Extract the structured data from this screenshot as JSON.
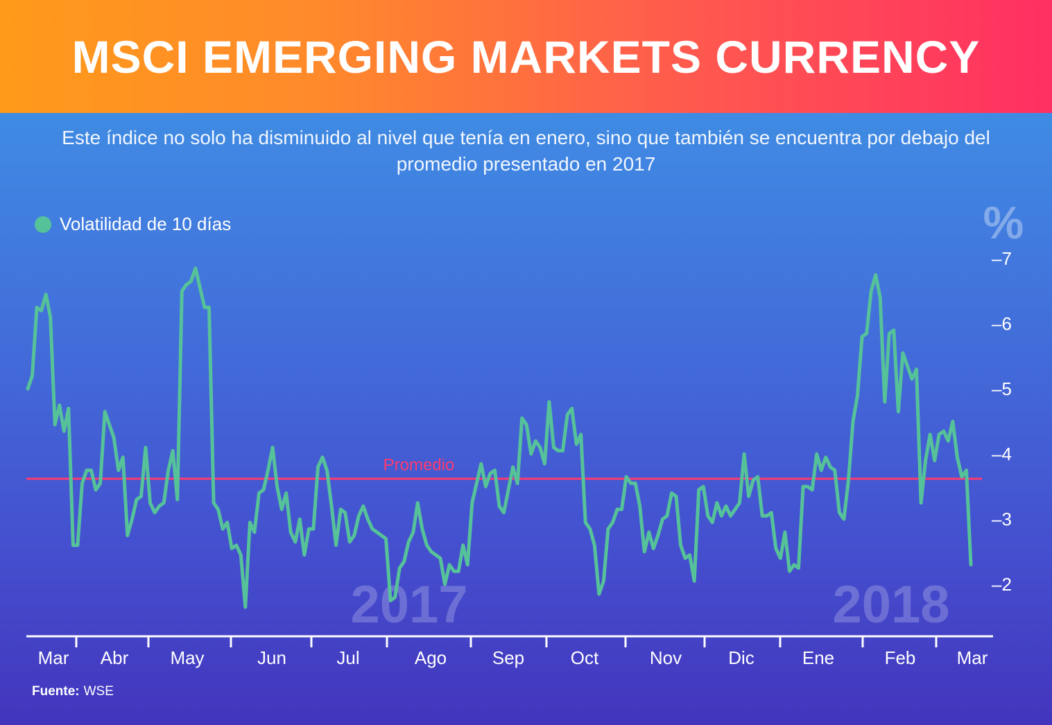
{
  "header": {
    "title": "MSCI EMERGING MARKETS CURRENCY"
  },
  "subtitle": "Este índice no solo ha disminuido al nivel que tenía en enero, sino que también se encuentra por debajo del promedio presentado en 2017",
  "legend": {
    "label": "Volatilidad de 10 días",
    "color": "#56c29a"
  },
  "source": {
    "label": "Fuente:",
    "value": "WSE"
  },
  "chart_data": {
    "type": "line",
    "title": "MSCI EMERGING MARKETS CURRENCY",
    "ylabel": "%",
    "ylim": [
      1.3,
      7.3
    ],
    "yticks": [
      2,
      3,
      4,
      5,
      6,
      7
    ],
    "ytick_labels": [
      "–2",
      "–3",
      "–4",
      "–5",
      "–6",
      "–7"
    ],
    "months": [
      "Mar",
      "Abr",
      "May",
      "Jun",
      "Jul",
      "Ago",
      "Sep",
      "Oct",
      "Nov",
      "Dic",
      "Ene",
      "Feb",
      "Mar"
    ],
    "year_labels": [
      "2017",
      "2018"
    ],
    "average": {
      "label": "Promedio",
      "value": 3.62,
      "color": "#ff3a6e"
    },
    "series": [
      {
        "name": "Volatilidad de 10 días",
        "color": "#56c29a",
        "values": [
          5.0,
          5.2,
          6.25,
          6.2,
          6.45,
          6.1,
          4.45,
          4.75,
          4.35,
          4.7,
          2.6,
          2.6,
          3.55,
          3.75,
          3.75,
          3.45,
          3.55,
          4.65,
          4.45,
          4.25,
          3.75,
          3.95,
          2.75,
          3.0,
          3.3,
          3.35,
          4.1,
          3.25,
          3.1,
          3.2,
          3.25,
          3.75,
          4.05,
          3.3,
          6.5,
          6.6,
          6.65,
          6.85,
          6.55,
          6.25,
          6.25,
          3.25,
          3.15,
          2.85,
          2.95,
          2.55,
          2.6,
          2.45,
          1.65,
          2.95,
          2.8,
          3.4,
          3.45,
          3.75,
          4.1,
          3.5,
          3.15,
          3.4,
          2.8,
          2.65,
          3.0,
          2.45,
          2.85,
          2.85,
          3.8,
          3.95,
          3.75,
          3.2,
          2.6,
          3.15,
          3.1,
          2.65,
          2.75,
          3.05,
          3.2,
          3.0,
          2.85,
          2.8,
          2.75,
          2.7,
          1.75,
          1.8,
          2.25,
          2.35,
          2.65,
          2.8,
          3.25,
          2.85,
          2.6,
          2.5,
          2.45,
          2.4,
          2.0,
          2.3,
          2.2,
          2.2,
          2.6,
          2.3,
          3.25,
          3.55,
          3.85,
          3.5,
          3.7,
          3.75,
          3.2,
          3.1,
          3.45,
          3.8,
          3.55,
          4.55,
          4.45,
          4.0,
          4.2,
          4.1,
          3.85,
          4.8,
          4.1,
          4.05,
          4.05,
          4.6,
          4.7,
          4.15,
          4.3,
          2.95,
          2.85,
          2.6,
          1.85,
          2.05,
          2.85,
          2.95,
          3.15,
          3.15,
          3.65,
          3.55,
          3.55,
          3.2,
          2.5,
          2.8,
          2.55,
          2.75,
          3.0,
          3.05,
          3.4,
          3.35,
          2.6,
          2.4,
          2.45,
          2.05,
          3.45,
          3.5,
          3.05,
          2.95,
          3.25,
          3.05,
          3.2,
          3.05,
          3.15,
          3.25,
          4.0,
          3.35,
          3.6,
          3.65,
          3.05,
          3.05,
          3.1,
          2.55,
          2.4,
          2.8,
          2.2,
          2.3,
          2.25,
          3.5,
          3.5,
          3.45,
          4.0,
          3.75,
          3.95,
          3.8,
          3.75,
          3.1,
          3.0,
          3.6,
          4.5,
          4.9,
          5.8,
          5.85,
          6.5,
          6.75,
          6.4,
          4.8,
          5.85,
          5.9,
          4.65,
          5.55,
          5.35,
          5.15,
          5.3,
          3.25,
          3.9,
          4.3,
          3.9,
          4.3,
          4.35,
          4.2,
          4.5,
          3.95,
          3.65,
          3.75,
          2.3
        ]
      }
    ]
  }
}
